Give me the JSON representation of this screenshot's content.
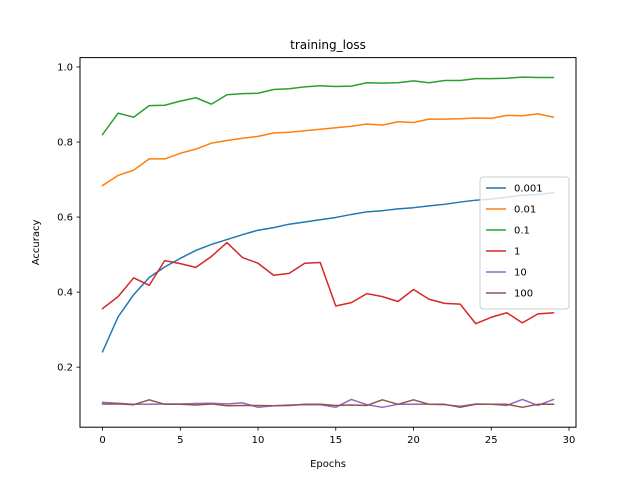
{
  "chart_data": {
    "type": "line",
    "title": "training_loss",
    "xlabel": "Epochs",
    "ylabel": "Accuracy",
    "xlim": [
      -1.45,
      30.45
    ],
    "ylim": [
      0.04,
      1.025
    ],
    "xticks": [
      0,
      5,
      10,
      15,
      20,
      25,
      30
    ],
    "yticks": [
      0.2,
      0.4,
      0.6,
      0.8,
      1.0
    ],
    "xtick_labels": [
      "0",
      "5",
      "10",
      "15",
      "20",
      "25",
      "30"
    ],
    "ytick_labels": [
      "0.2",
      "0.4",
      "0.6",
      "0.8",
      "1.0"
    ],
    "grid": false,
    "legend_position": "center-right",
    "x": [
      0,
      1,
      2,
      3,
      4,
      5,
      6,
      7,
      8,
      9,
      10,
      11,
      12,
      13,
      14,
      15,
      16,
      17,
      18,
      19,
      20,
      21,
      22,
      23,
      24,
      25,
      26,
      27,
      28,
      29
    ],
    "series": [
      {
        "name": "0.001",
        "color": "#1f77b4",
        "values": [
          0.241,
          0.334,
          0.393,
          0.439,
          0.467,
          0.49,
          0.511,
          0.527,
          0.54,
          0.553,
          0.565,
          0.572,
          0.581,
          0.587,
          0.593,
          0.599,
          0.607,
          0.614,
          0.617,
          0.622,
          0.625,
          0.63,
          0.634,
          0.64,
          0.645,
          0.648,
          0.653,
          0.658,
          0.66,
          0.665
        ]
      },
      {
        "name": "0.01",
        "color": "#ff7f0e",
        "values": [
          0.684,
          0.711,
          0.725,
          0.755,
          0.755,
          0.77,
          0.781,
          0.797,
          0.804,
          0.81,
          0.815,
          0.824,
          0.826,
          0.83,
          0.834,
          0.838,
          0.842,
          0.848,
          0.845,
          0.854,
          0.852,
          0.861,
          0.861,
          0.862,
          0.864,
          0.863,
          0.871,
          0.87,
          0.875,
          0.866
        ]
      },
      {
        "name": "0.1",
        "color": "#2ca02c",
        "values": [
          0.82,
          0.877,
          0.866,
          0.897,
          0.898,
          0.909,
          0.918,
          0.901,
          0.926,
          0.929,
          0.93,
          0.94,
          0.942,
          0.947,
          0.95,
          0.948,
          0.949,
          0.958,
          0.957,
          0.958,
          0.963,
          0.958,
          0.964,
          0.964,
          0.969,
          0.969,
          0.97,
          0.973,
          0.972,
          0.972
        ]
      },
      {
        "name": "1",
        "color": "#d62728",
        "values": [
          0.356,
          0.388,
          0.438,
          0.418,
          0.484,
          0.476,
          0.466,
          0.495,
          0.532,
          0.492,
          0.477,
          0.445,
          0.45,
          0.477,
          0.479,
          0.363,
          0.372,
          0.396,
          0.388,
          0.375,
          0.407,
          0.381,
          0.37,
          0.368,
          0.316,
          0.333,
          0.345,
          0.318,
          0.342,
          0.345
        ]
      },
      {
        "name": "10",
        "color": "#9467bd",
        "values": [
          0.106,
          0.104,
          0.101,
          0.101,
          0.102,
          0.102,
          0.103,
          0.104,
          0.102,
          0.105,
          0.093,
          0.097,
          0.099,
          0.1,
          0.1,
          0.093,
          0.114,
          0.1,
          0.093,
          0.101,
          0.101,
          0.101,
          0.1,
          0.096,
          0.102,
          0.101,
          0.098,
          0.114,
          0.098,
          0.114
        ]
      },
      {
        "name": "100",
        "color": "#8c564b",
        "values": [
          0.102,
          0.102,
          0.1,
          0.113,
          0.101,
          0.101,
          0.099,
          0.102,
          0.097,
          0.098,
          0.098,
          0.097,
          0.098,
          0.101,
          0.101,
          0.098,
          0.099,
          0.098,
          0.113,
          0.101,
          0.113,
          0.101,
          0.101,
          0.093,
          0.101,
          0.101,
          0.101,
          0.093,
          0.101,
          0.101
        ]
      }
    ]
  }
}
